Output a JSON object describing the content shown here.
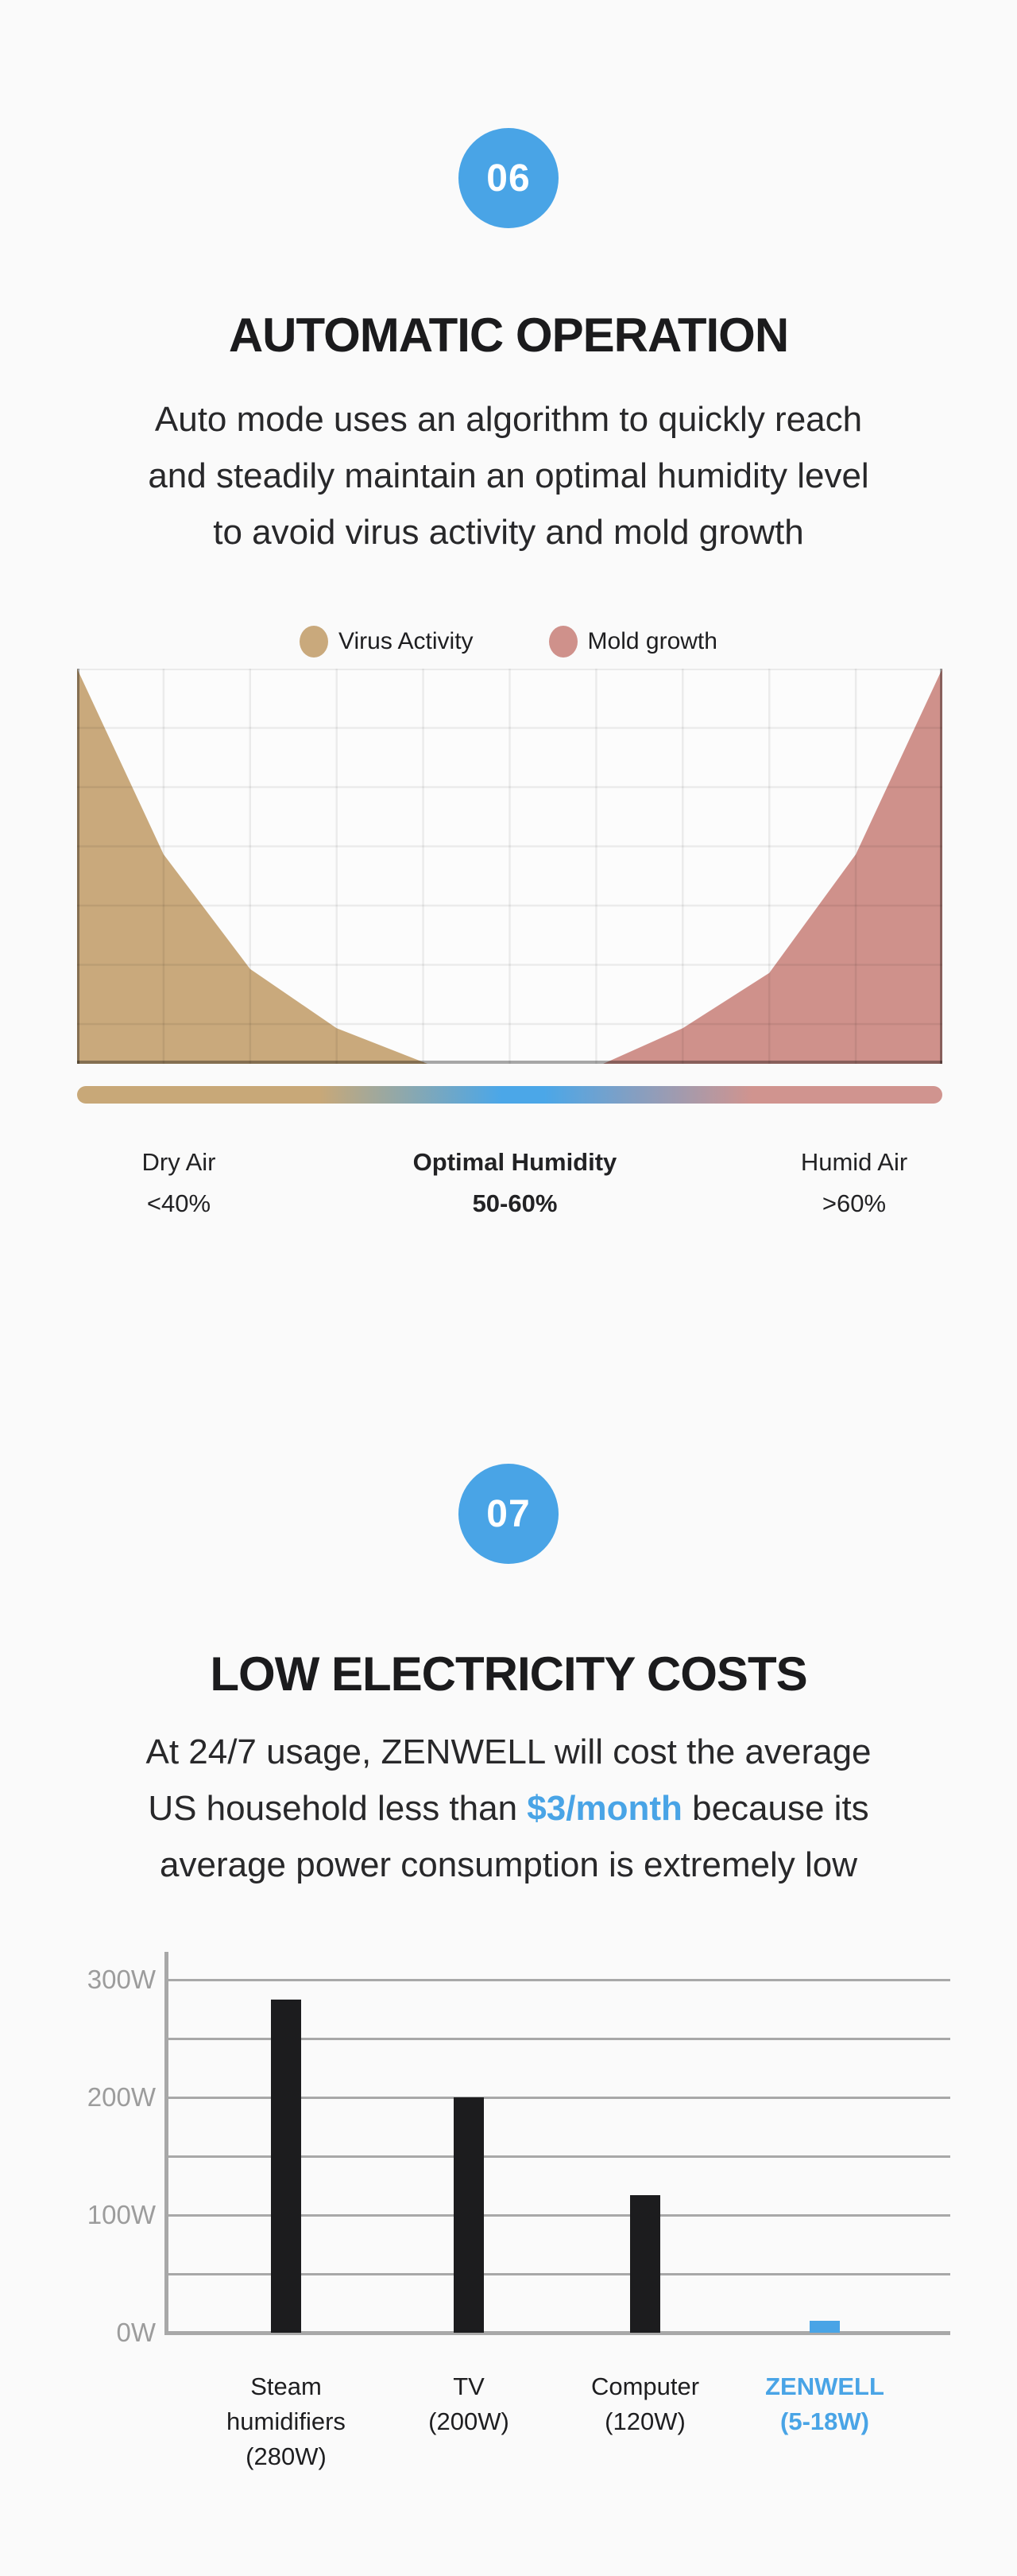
{
  "accent_blue": "#49A4E6",
  "background": "#FAFAFA",
  "text_dark": "#1B1B1D",
  "section_auto": {
    "badge": "06",
    "title": "AUTOMATIC OPERATION",
    "paragraph_lines": [
      "Auto mode uses an algorithm to quickly reach",
      "and steadily maintain an optimal humidity level",
      "to avoid virus activity and mold growth"
    ],
    "legend": [
      {
        "label": "Virus Activity",
        "color": "#C9A97C"
      },
      {
        "label": "Mold growth",
        "color": "#CF918B"
      }
    ],
    "zones": [
      {
        "label": "Dry Air",
        "range": "<40%"
      },
      {
        "label": "Optimal Humidity",
        "range": "50-60%"
      },
      {
        "label": "Humid Air",
        "range": ">60%"
      }
    ]
  },
  "section_power": {
    "badge": "07",
    "title": "LOW ELECTRICITY COSTS",
    "paragraph": {
      "line1": "At 24/7 usage, ZENWELL will cost the average",
      "line2_pre": "US household less than ",
      "highlight": "$3/month",
      "line2_post": " because its",
      "line3": "average power consumption is extremely low"
    }
  },
  "chart_data": [
    {
      "type": "area",
      "title": "Virus activity and mold growth vs humidity",
      "legend_entries": [
        "Virus Activity",
        "Mold growth"
      ],
      "x_axis": "relative humidity (unlabeled axis, gridded)",
      "y_axis": "relative risk level (unlabeled axis, gridded)",
      "grid": true,
      "series": [
        {
          "name": "Virus Activity",
          "color": "#C9A97C",
          "points_pct": [
            [
              0,
              100
            ],
            [
              10,
              53
            ],
            [
              20,
              24
            ],
            [
              30,
              9
            ],
            [
              40.5,
              0
            ]
          ]
        },
        {
          "name": "Mold growth",
          "color": "#CF918B",
          "points_pct": [
            [
              60.8,
              0
            ],
            [
              70,
              9
            ],
            [
              80,
              23
            ],
            [
              90,
              53
            ],
            [
              100,
              100
            ]
          ]
        }
      ],
      "humidity_zones": [
        {
          "label": "Dry Air",
          "range": "<40%"
        },
        {
          "label": "Optimal Humidity",
          "range": "50-60%"
        },
        {
          "label": "Humid Air",
          "range": ">60%"
        }
      ],
      "gradient_stops": [
        "#C8A878 0%",
        "#C8A878 28%",
        "#4BA7E8 49%",
        "#4BA7E8 54%",
        "#D0948F 78%",
        "#D0948F 100%"
      ]
    },
    {
      "type": "bar",
      "title": "Average power consumption",
      "categories": [
        [
          "Steam",
          "humidifiers",
          "(280W)"
        ],
        [
          "TV",
          "(200W)"
        ],
        [
          "Computer",
          "(120W)"
        ],
        [
          "ZENWELL",
          "(5-18W)"
        ]
      ],
      "stated_values": [
        "280W",
        "200W",
        "120W",
        "5-18W"
      ],
      "values": [
        283,
        200,
        117,
        10
      ],
      "bar_colors": [
        "#1C1C1E",
        "#1C1C1E",
        "#1C1C1E",
        "#49A4E6"
      ],
      "highlight_index": 3,
      "ylabels": [
        {
          "text": "300W",
          "value": 300
        },
        {
          "text": "200W",
          "value": 200
        },
        {
          "text": "100W",
          "value": 100
        },
        {
          "text": "0W",
          "value": 0
        }
      ],
      "ylim": [
        0,
        325
      ],
      "grid_step_w": 50,
      "grid": true,
      "legend_position": "none"
    }
  ]
}
